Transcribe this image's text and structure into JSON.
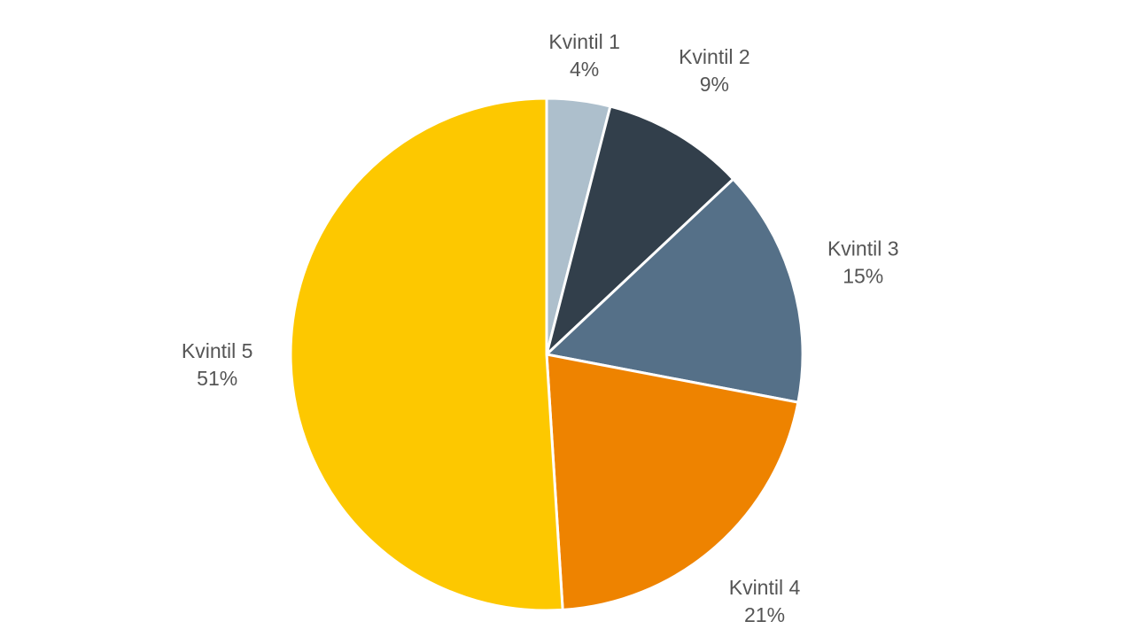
{
  "chart_data": {
    "type": "pie",
    "categories": [
      "Kvintil 1",
      "Kvintil 2",
      "Kvintil 3",
      "Kvintil 4",
      "Kvintil 5"
    ],
    "values": [
      4,
      9,
      15,
      21,
      51
    ],
    "value_labels": [
      "4%",
      "9%",
      "15%",
      "21%",
      "51%"
    ],
    "colors": [
      "#adbfcc",
      "#323f4b",
      "#557088",
      "#ee8300",
      "#fdc800"
    ]
  }
}
